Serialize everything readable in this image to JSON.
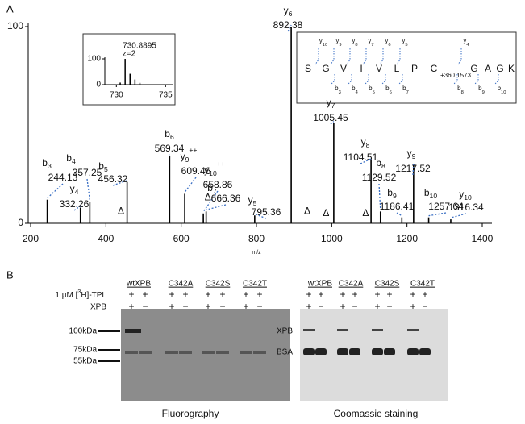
{
  "chart_data": {
    "type": "stem",
    "panel_label": "A",
    "xlabel": "m/z",
    "xlim": [
      200,
      1400
    ],
    "ylim": [
      0,
      100
    ],
    "xticks": [
      200,
      400,
      600,
      800,
      1000,
      1200,
      1400
    ],
    "yticks": [
      0,
      100
    ],
    "color": "#000000",
    "annotation_color": "#3a6fc4",
    "x": [
      244.13,
      332.26,
      357.25,
      456.32,
      569.34,
      609.46,
      658.86,
      666.36,
      795.36,
      892.38,
      1005.45,
      1104.51,
      1129.52,
      1186.41,
      1217.52,
      1257.64,
      1316.34
    ],
    "values": [
      12,
      8,
      11,
      21,
      34,
      15,
      5,
      6,
      4,
      100,
      51,
      32,
      6,
      3,
      30,
      3,
      2
    ],
    "ion_labels": [
      "b3",
      "y4",
      "b4",
      "b5",
      "b6",
      "y9++",
      "y10++",
      "b7",
      "y5",
      "y6",
      "y7",
      "y8",
      "b8",
      "b9",
      "y9",
      "b10",
      "y10"
    ],
    "markers": {
      "label": "Δ",
      "x": [
        440,
        671,
        935,
        985,
        1090
      ],
      "values": [
        6,
        13,
        6,
        5,
        5
      ]
    },
    "inset": {
      "title": "730.8895",
      "subtitle": "z=2",
      "xlim": [
        728.5,
        736
      ],
      "ylim": [
        0,
        100
      ],
      "xticks": [
        730,
        735
      ],
      "yticks": [
        0,
        100
      ],
      "x": [
        730.39,
        730.89,
        731.39,
        731.89,
        732.39
      ],
      "values": [
        8,
        100,
        42,
        20,
        7
      ]
    }
  },
  "sequence": {
    "residues": [
      "S",
      "G",
      "V",
      "I",
      "V",
      "L",
      "P",
      "C",
      "G",
      "A",
      "G",
      "K"
    ],
    "modification": "+360.1573",
    "y_ions": [
      "y10",
      "y9",
      "y8",
      "y7",
      "y6",
      "y5",
      "y4"
    ],
    "b_ions": [
      "b3",
      "b4",
      "b5",
      "b6",
      "b7",
      "b8",
      "b9",
      "b10"
    ]
  },
  "panel_b": {
    "panel_label": "B",
    "groups": [
      "wtXPB",
      "C342A",
      "C342S",
      "C342T"
    ],
    "tpl_label": [
      "1 μM [",
      "3",
      "H]-TPL"
    ],
    "xpb_label": "XPB",
    "tpl_row": [
      "+",
      "+",
      "+",
      "+",
      "+",
      "+",
      "+",
      "+"
    ],
    "xpb_row": [
      "+",
      "−",
      "+",
      "−",
      "+",
      "−",
      "+",
      "−"
    ],
    "markers": [
      "100kDa",
      "75kDa",
      "55kDa"
    ],
    "bands": [
      "XPB",
      "BSA"
    ],
    "captions": [
      "Fluorography",
      "Coomassie staining"
    ]
  }
}
